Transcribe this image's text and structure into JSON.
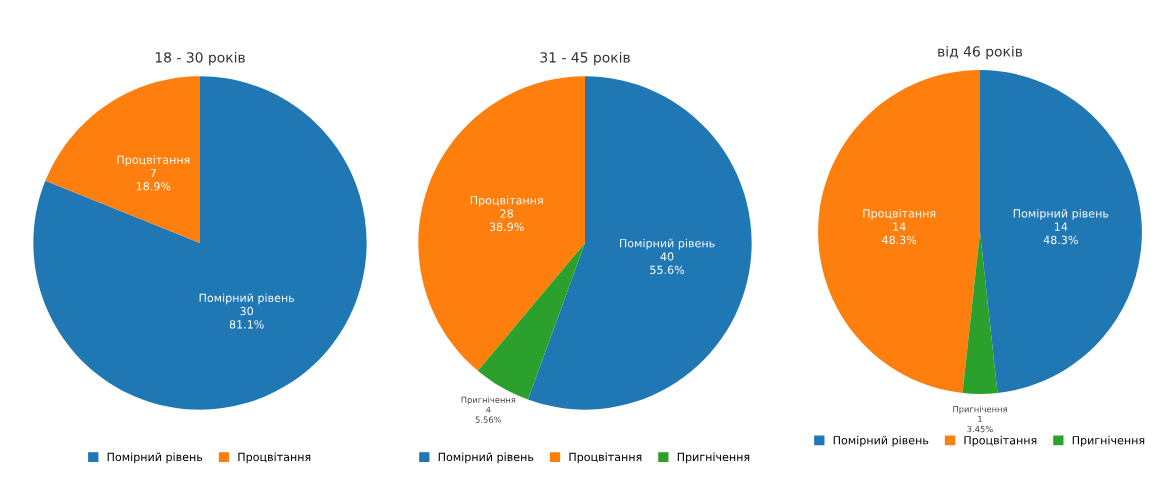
{
  "chart_data": [
    {
      "type": "pie",
      "title": "18 - 30 років",
      "categories": [
        "Помірний рівень",
        "Процвітання"
      ],
      "values": [
        30,
        7
      ],
      "colors": [
        "#1f77b4",
        "#ff7f0e"
      ],
      "value_labels": [
        "30\n81.1%",
        "7\n18.9%"
      ],
      "legend": "bottom"
    },
    {
      "type": "pie",
      "title": "31 - 45 років",
      "categories": [
        "Помірний рівень",
        "Процвітання",
        "Пригнічення"
      ],
      "values": [
        40,
        28,
        4
      ],
      "colors": [
        "#1f77b4",
        "#ff7f0e",
        "#2ca02c"
      ],
      "value_labels": [
        "40\n55.6%",
        "28\n38.9%",
        "4\n5.56%"
      ],
      "legend": "bottom"
    },
    {
      "type": "pie",
      "title": "від 46 років",
      "categories": [
        "Помірний рівень",
        "Процвітання",
        "Пригнічення"
      ],
      "values": [
        14,
        14,
        1
      ],
      "colors": [
        "#1f77b4",
        "#ff7f0e",
        "#2ca02c"
      ],
      "value_labels": [
        "14\n48.3%",
        "14\n48.3%",
        "1\n3.45%"
      ],
      "legend": "bottom"
    }
  ]
}
